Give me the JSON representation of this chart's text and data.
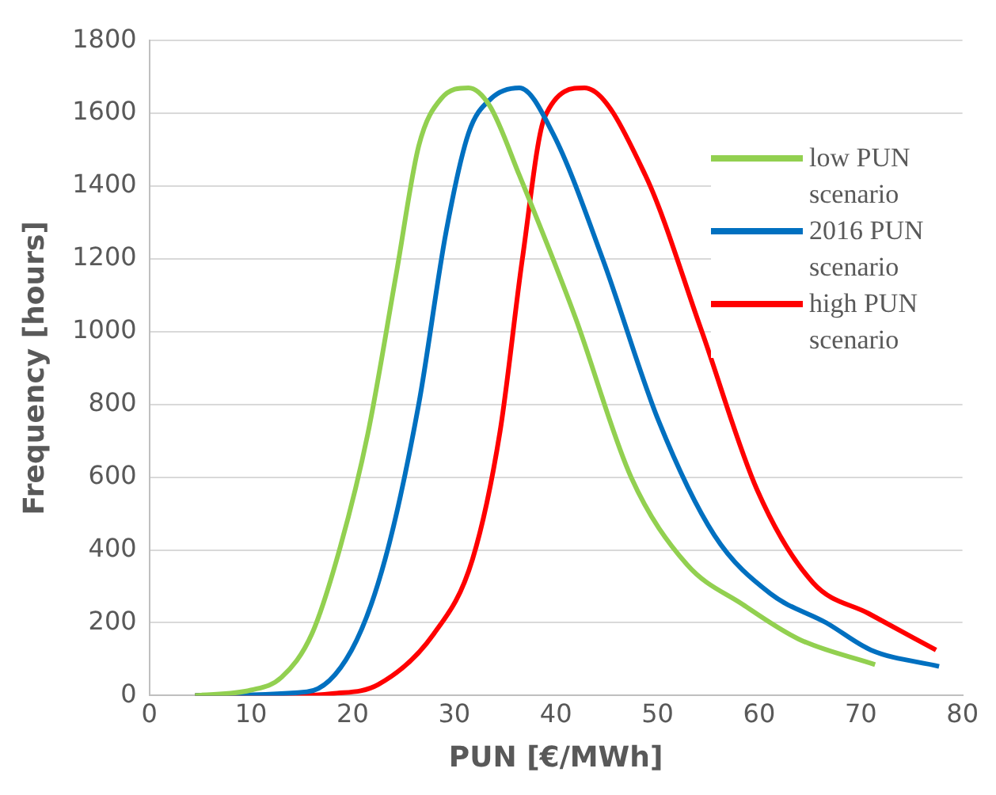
{
  "chart_data": {
    "type": "line",
    "xlabel": "PUN [€/MWh]",
    "ylabel": "Frequency [hours]",
    "xlim": [
      0,
      80
    ],
    "xticks": [
      0,
      10,
      20,
      30,
      40,
      50,
      60,
      70,
      80
    ],
    "ylim": [
      0,
      1800
    ],
    "yticks": [
      0,
      200,
      400,
      600,
      800,
      1000,
      1200,
      1400,
      1600,
      1800
    ],
    "grid": "y",
    "legend": "top right",
    "marker": "none",
    "line_style": "solid",
    "series": [
      {
        "name": "low PUN scenario",
        "color": "#92d050",
        "x": [
          4.5,
          10,
          13,
          16,
          18.8,
          21.5,
          24.3,
          26.5,
          28.7,
          31.4,
          33.5,
          36.4,
          41.9,
          47.4,
          52.9,
          58.4,
          63.9,
          71.4
        ],
        "values": [
          0,
          15,
          50,
          170,
          410,
          720,
          1160,
          1510,
          1640,
          1670,
          1620,
          1430,
          1040,
          600,
          360,
          250,
          155,
          85
        ]
      },
      {
        "name": "2016 PUN scenario",
        "color": "#0070c0",
        "x": [
          4.5,
          15.5,
          19.9,
          23.2,
          26.5,
          29.2,
          31.4,
          33.6,
          36.4,
          39.7,
          44.6,
          50.1,
          55.6,
          61.1,
          66.6,
          71,
          77.7
        ],
        "values": [
          0,
          10,
          125,
          375,
          800,
          1275,
          1545,
          1640,
          1670,
          1545,
          1200,
          755,
          440,
          280,
          200,
          125,
          80
        ]
      },
      {
        "name": "high PUN scenario",
        "color": "#ff0000",
        "x": [
          4.5,
          14.4,
          18,
          22.5,
          28,
          31.8,
          34.5,
          36.7,
          38.9,
          42.8,
          48.8,
          54.3,
          59.8,
          65.3,
          70.8,
          77.4
        ],
        "values": [
          0,
          0,
          5,
          30,
          170,
          375,
          725,
          1200,
          1590,
          1670,
          1430,
          1005,
          565,
          310,
          225,
          125
        ]
      }
    ]
  }
}
